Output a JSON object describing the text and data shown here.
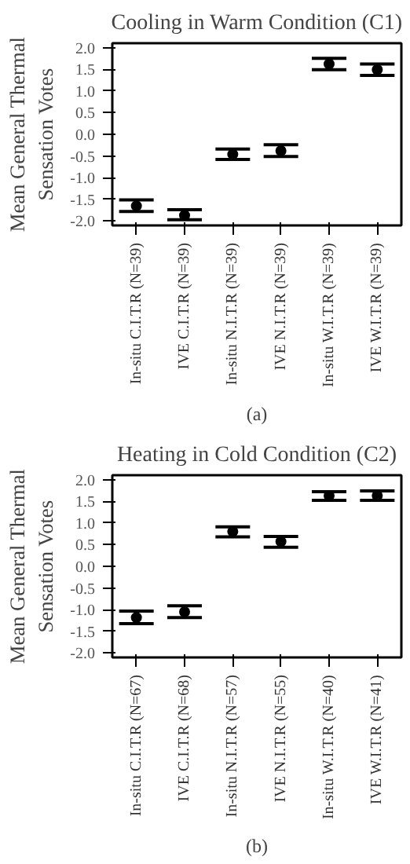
{
  "chart_data": [
    {
      "type": "scatter",
      "title": "Cooling in Warm Condition (C1)",
      "ylabel": "Mean General Thermal\nSensation Votes",
      "categories": [
        "In-situ C.I.T.R (N=39)",
        "IVE C.I.T.R (N=39)",
        "In-situ N.I.T.R (N=39)",
        "IVE N.I.T.R (N=39)",
        "In-situ W.I.T.R (N=39)",
        "IVE W.I.T.R (N=39)"
      ],
      "values": [
        -1.65,
        -1.87,
        -0.46,
        -0.38,
        1.62,
        1.49
      ],
      "errors": [
        [
          -1.78,
          -1.51
        ],
        [
          -1.97,
          -1.74
        ],
        [
          -0.58,
          -0.34
        ],
        [
          -0.51,
          -0.24
        ],
        [
          1.49,
          1.75
        ],
        [
          1.36,
          1.62
        ]
      ],
      "color": "#000000",
      "marker": "circle",
      "grid": false,
      "ylim": [
        -2.1,
        2.1
      ],
      "yticks": [
        {
          "value": -2,
          "label": "-2.0"
        },
        -1.5,
        {
          "value": -1,
          "label": "-1.0"
        },
        -0.5,
        {
          "value": 0,
          "label": "0.0"
        },
        0.5,
        {
          "value": 1,
          "label": "1.0"
        },
        1.5,
        {
          "value": 2,
          "label": "2.0"
        }
      ],
      "annotations": [
        "(a)"
      ]
    },
    {
      "type": "scatter",
      "title": "Heating in Cold Condition (C2)",
      "ylabel": "Mean General Thermal\nSensation Votes",
      "categories": [
        "In-situ C.I.T.R (N=67)",
        "IVE C.I.T.R (N=68)",
        "In-situ N.I.T.R (N=57)",
        "IVE N.I.T.R (N=55)",
        "In-situ W.I.T.R (N=40)",
        "IVE W.I.T.R (N=41)"
      ],
      "values": [
        -1.18,
        -1.05,
        0.8,
        0.57,
        1.63,
        1.63
      ],
      "errors": [
        [
          -1.32,
          -1.03
        ],
        [
          -1.18,
          -0.91
        ],
        [
          0.68,
          0.91
        ],
        [
          0.44,
          0.69
        ],
        [
          1.52,
          1.72
        ],
        [
          1.52,
          1.74
        ]
      ],
      "color": "#000000",
      "marker": "circle",
      "grid": false,
      "ylim": [
        -2.1,
        2.1
      ],
      "yticks": [
        {
          "value": -2,
          "label": "-2.0"
        },
        -1.5,
        {
          "value": -1,
          "label": "-1.0"
        },
        -0.5,
        {
          "value": 0,
          "label": "0.0"
        },
        0.5,
        {
          "value": 1,
          "label": "1.0"
        },
        1.5,
        {
          "value": 2,
          "label": "2.0"
        }
      ],
      "annotations": [
        "(b)"
      ]
    }
  ]
}
